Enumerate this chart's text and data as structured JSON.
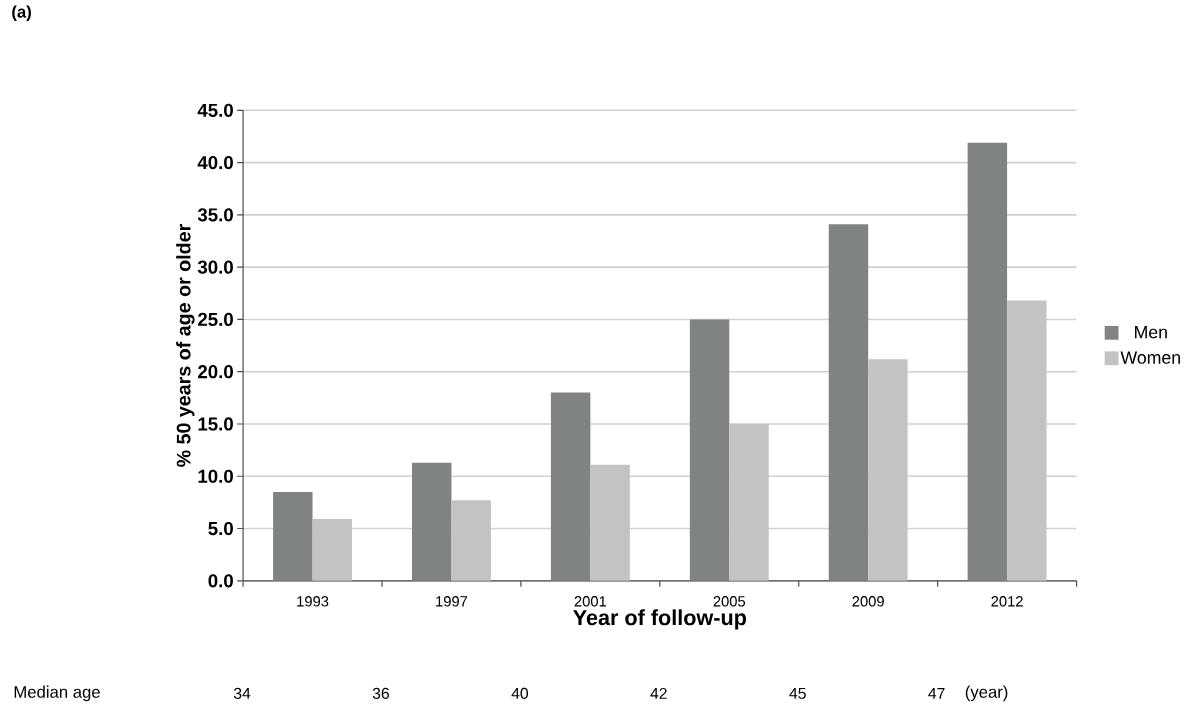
{
  "chart_data": {
    "type": "bar",
    "xlabel": "Year of follow-up",
    "ylabel": "% 50 years of age or older",
    "categories": [
      "1993",
      "1997",
      "2001",
      "2005",
      "2009",
      "2012"
    ],
    "series": [
      {
        "name": "Men",
        "color": "#7f8382",
        "values": [
          8.5,
          11.3,
          18.0,
          25.0,
          34.1,
          41.9
        ]
      },
      {
        "name": "Women",
        "color": "#c3c3c3",
        "values": [
          5.9,
          7.7,
          11.1,
          15.0,
          21.2,
          26.8
        ]
      }
    ],
    "ylim": [
      0,
      45
    ],
    "yticks": [
      {
        "value": 0,
        "label": "0.0"
      },
      {
        "value": 5,
        "label": "5.0"
      },
      {
        "value": 10,
        "label": "10.0"
      },
      {
        "value": 15,
        "label": "15.0"
      },
      {
        "value": 20,
        "label": "20.0"
      },
      {
        "value": 25,
        "label": "25.0"
      },
      {
        "value": 30,
        "label": "30.0"
      },
      {
        "value": 35,
        "label": "35.0"
      },
      {
        "value": 40,
        "label": "40.0"
      },
      {
        "value": 45,
        "label": "45.0"
      }
    ],
    "grid": "y",
    "legend": "right",
    "annotations": [
      "(a)",
      "Median age",
      "34",
      "36",
      "40",
      "42",
      "45",
      "47",
      "(year)"
    ]
  }
}
